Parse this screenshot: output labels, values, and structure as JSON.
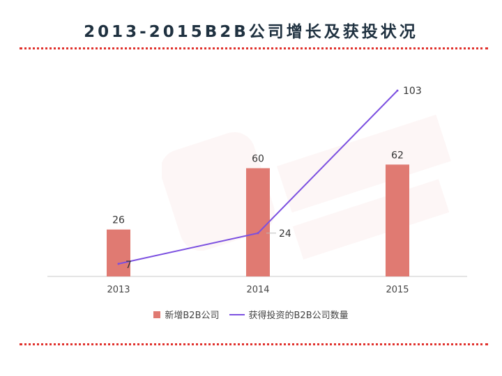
{
  "title": "2013-2015B2B公司增长及获投状况",
  "colors": {
    "bar": "#e07a72",
    "line": "#7b4fe0",
    "divider": "#e0302b",
    "title": "#1f3140"
  },
  "chart_data": {
    "type": "bar",
    "categories": [
      "2013",
      "2014",
      "2015"
    ],
    "ylim": [
      0,
      110
    ],
    "series": [
      {
        "name": "新增B2B公司",
        "type": "bar",
        "values": [
          26,
          60,
          62
        ]
      },
      {
        "name": "获得投资的B2B公司数量",
        "type": "line",
        "values": [
          7,
          24,
          103
        ]
      }
    ]
  },
  "legend": {
    "bar_label": "新增B2B公司",
    "line_label": "获得投资的B2B公司数量"
  }
}
